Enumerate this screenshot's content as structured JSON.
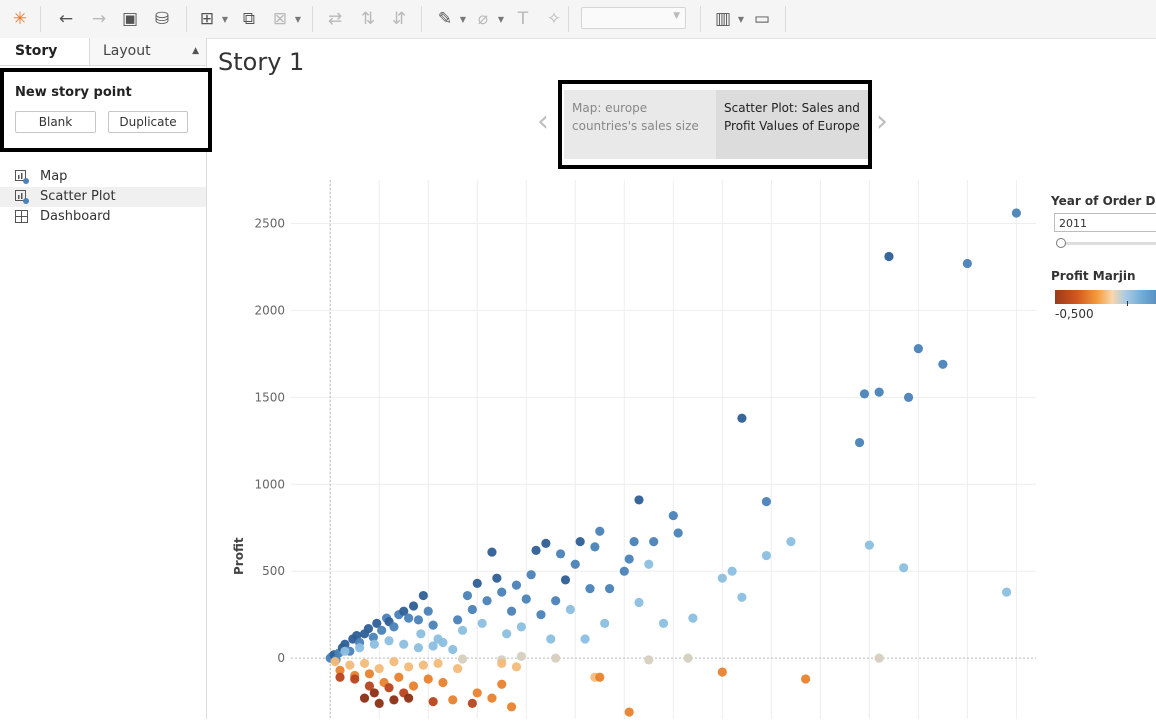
{
  "toolbar": {
    "buttons": [
      {
        "name": "tableau-logo-icon",
        "glyph": "✳",
        "x": 8
      },
      {
        "name": "undo-icon",
        "glyph": "←",
        "x": 54
      },
      {
        "name": "redo-icon",
        "glyph": "→",
        "x": 87,
        "dim": true
      },
      {
        "name": "save-icon",
        "glyph": "▣",
        "x": 118
      },
      {
        "name": "new-datasource-icon",
        "glyph": "⛁",
        "x": 150
      },
      {
        "name": "new-worksheet-icon",
        "glyph": "⊞",
        "x": 195,
        "dd": true
      },
      {
        "name": "duplicate-sheet-icon",
        "glyph": "⧉",
        "x": 237
      },
      {
        "name": "clear-sheet-icon",
        "glyph": "⊠",
        "x": 268,
        "dd": true,
        "dim": true
      },
      {
        "name": "swap-axes-icon",
        "glyph": "⇄",
        "x": 323,
        "dim": true
      },
      {
        "name": "sort-ascending-icon",
        "glyph": "⇅",
        "x": 356,
        "dim": true
      },
      {
        "name": "sort-descending-icon",
        "glyph": "⇵",
        "x": 387,
        "dim": true
      },
      {
        "name": "highlight-icon",
        "glyph": "✎",
        "x": 433,
        "dd": true
      },
      {
        "name": "group-icon",
        "glyph": "⌀",
        "x": 471,
        "dd": true,
        "dim": true
      },
      {
        "name": "show-labels-icon",
        "glyph": "T",
        "x": 511,
        "dim": true
      },
      {
        "name": "fix-axes-icon",
        "glyph": "✧",
        "x": 542,
        "dim": true
      },
      {
        "name": "show-me-icon",
        "glyph": "▥",
        "x": 711,
        "dd": true
      },
      {
        "name": "presentation-mode-icon",
        "glyph": "▭",
        "x": 750
      }
    ],
    "separators": [
      40,
      186,
      312,
      421,
      568,
      700,
      785
    ]
  },
  "left_panel": {
    "story_tab": "Story",
    "layout_tab": "Layout",
    "new_story_point_title": "New story point",
    "blank_button": "Blank",
    "duplicate_button": "Duplicate",
    "sheets": [
      {
        "label": "Map",
        "icon": "worksheet-icon",
        "selected": false
      },
      {
        "label": "Scatter Plot",
        "icon": "worksheet-icon",
        "selected": true
      },
      {
        "label": "Dashboard",
        "icon": "dashboard-icon",
        "selected": false
      }
    ]
  },
  "story": {
    "title": "Story 1",
    "prev_arrow": "‹",
    "next_arrow": "›",
    "points": [
      {
        "label": "Map: europe countries's sales size",
        "active": false
      },
      {
        "label": "Scatter Plot: Sales and Profit Values of Europe",
        "active": true
      }
    ]
  },
  "legend": {
    "year_title": "Year of Order Date",
    "year_value": "2011",
    "profit_title": "Profit Marjin",
    "profit_min": "-0,500"
  },
  "chart_data": {
    "type": "scatter",
    "xlabel": "",
    "ylabel": "Profit",
    "ylim": [
      -350,
      2750
    ],
    "xlim": [
      -800,
      14400
    ],
    "yticks": [
      2500,
      2000,
      1500,
      1000,
      500,
      0
    ],
    "grid": true,
    "legend": "right",
    "colors": {
      "dark_blue": "#2e5f96",
      "mid_blue": "#4a82b9",
      "light_blue": "#8cbfe0",
      "neutral": "#d6cdbd",
      "light_orange": "#f4bb7a",
      "orange": "#e8822d",
      "dark_orange": "#b9431d",
      "brown": "#8c2f14"
    },
    "points": [
      [
        0,
        0,
        "mid_blue"
      ],
      [
        40,
        10,
        "mid_blue"
      ],
      [
        80,
        20,
        "dark_blue"
      ],
      [
        120,
        -10,
        "mid_blue"
      ],
      [
        180,
        30,
        "mid_blue"
      ],
      [
        250,
        60,
        "dark_blue"
      ],
      [
        300,
        80,
        "dark_blue"
      ],
      [
        400,
        40,
        "mid_blue"
      ],
      [
        460,
        110,
        "dark_blue"
      ],
      [
        540,
        130,
        "dark_blue"
      ],
      [
        600,
        90,
        "mid_blue"
      ],
      [
        700,
        140,
        "dark_blue"
      ],
      [
        780,
        170,
        "dark_blue"
      ],
      [
        880,
        120,
        "mid_blue"
      ],
      [
        950,
        200,
        "dark_blue"
      ],
      [
        1050,
        160,
        "mid_blue"
      ],
      [
        1150,
        230,
        "mid_blue"
      ],
      [
        1200,
        210,
        "dark_blue"
      ],
      [
        1300,
        180,
        "mid_blue"
      ],
      [
        1400,
        250,
        "mid_blue"
      ],
      [
        1500,
        270,
        "dark_blue"
      ],
      [
        1600,
        230,
        "mid_blue"
      ],
      [
        1700,
        300,
        "dark_blue"
      ],
      [
        1800,
        220,
        "mid_blue"
      ],
      [
        1850,
        140,
        "light_blue"
      ],
      [
        1900,
        360,
        "dark_blue"
      ],
      [
        2000,
        270,
        "mid_blue"
      ],
      [
        2100,
        190,
        "mid_blue"
      ],
      [
        2200,
        110,
        "light_blue"
      ],
      [
        300,
        40,
        "light_blue"
      ],
      [
        600,
        60,
        "light_blue"
      ],
      [
        900,
        80,
        "light_blue"
      ],
      [
        1200,
        100,
        "light_blue"
      ],
      [
        1500,
        80,
        "light_blue"
      ],
      [
        1800,
        60,
        "light_blue"
      ],
      [
        2100,
        70,
        "light_blue"
      ],
      [
        2300,
        90,
        "light_blue"
      ],
      [
        2500,
        50,
        "light_blue"
      ],
      [
        2600,
        220,
        "mid_blue"
      ],
      [
        2700,
        160,
        "light_blue"
      ],
      [
        2800,
        360,
        "mid_blue"
      ],
      [
        2900,
        280,
        "mid_blue"
      ],
      [
        3000,
        430,
        "dark_blue"
      ],
      [
        3100,
        200,
        "light_blue"
      ],
      [
        3200,
        330,
        "mid_blue"
      ],
      [
        3300,
        610,
        "dark_blue"
      ],
      [
        3400,
        460,
        "dark_blue"
      ],
      [
        3500,
        380,
        "mid_blue"
      ],
      [
        3600,
        140,
        "light_blue"
      ],
      [
        3700,
        270,
        "mid_blue"
      ],
      [
        3800,
        420,
        "mid_blue"
      ],
      [
        3900,
        180,
        "light_blue"
      ],
      [
        4000,
        340,
        "mid_blue"
      ],
      [
        4100,
        480,
        "mid_blue"
      ],
      [
        4200,
        620,
        "dark_blue"
      ],
      [
        4300,
        250,
        "mid_blue"
      ],
      [
        4400,
        660,
        "dark_blue"
      ],
      [
        4500,
        110,
        "light_blue"
      ],
      [
        4600,
        330,
        "mid_blue"
      ],
      [
        4700,
        600,
        "mid_blue"
      ],
      [
        4800,
        450,
        "dark_blue"
      ],
      [
        4900,
        280,
        "light_blue"
      ],
      [
        5000,
        540,
        "mid_blue"
      ],
      [
        5100,
        670,
        "dark_blue"
      ],
      [
        5200,
        110,
        "light_blue"
      ],
      [
        5300,
        400,
        "mid_blue"
      ],
      [
        5400,
        640,
        "mid_blue"
      ],
      [
        5500,
        730,
        "mid_blue"
      ],
      [
        5600,
        200,
        "light_blue"
      ],
      [
        5700,
        400,
        "mid_blue"
      ],
      [
        6000,
        500,
        "mid_blue"
      ],
      [
        6100,
        570,
        "mid_blue"
      ],
      [
        6200,
        670,
        "mid_blue"
      ],
      [
        6300,
        320,
        "light_blue"
      ],
      [
        6300,
        910,
        "dark_blue"
      ],
      [
        6500,
        540,
        "light_blue"
      ],
      [
        6600,
        670,
        "mid_blue"
      ],
      [
        6800,
        200,
        "light_blue"
      ],
      [
        7000,
        820,
        "mid_blue"
      ],
      [
        7100,
        720,
        "mid_blue"
      ],
      [
        7400,
        230,
        "light_blue"
      ],
      [
        8000,
        460,
        "light_blue"
      ],
      [
        8200,
        500,
        "light_blue"
      ],
      [
        8400,
        350,
        "light_blue"
      ],
      [
        8400,
        1380,
        "dark_blue"
      ],
      [
        8900,
        590,
        "light_blue"
      ],
      [
        8900,
        900,
        "mid_blue"
      ],
      [
        9400,
        670,
        "light_blue"
      ],
      [
        10800,
        1240,
        "mid_blue"
      ],
      [
        10900,
        1520,
        "mid_blue"
      ],
      [
        11000,
        650,
        "light_blue"
      ],
      [
        11200,
        1530,
        "mid_blue"
      ],
      [
        11400,
        2310,
        "dark_blue"
      ],
      [
        11800,
        1500,
        "mid_blue"
      ],
      [
        12000,
        1780,
        "mid_blue"
      ],
      [
        12500,
        1690,
        "mid_blue"
      ],
      [
        13000,
        2270,
        "mid_blue"
      ],
      [
        14000,
        2560,
        "mid_blue"
      ],
      [
        11700,
        520,
        "light_blue"
      ],
      [
        13800,
        380,
        "light_blue"
      ],
      [
        7300,
        0,
        "neutral"
      ],
      [
        4600,
        0,
        "neutral"
      ],
      [
        3900,
        10,
        "neutral"
      ],
      [
        3500,
        -10,
        "neutral"
      ],
      [
        2700,
        -5,
        "neutral"
      ],
      [
        11200,
        0,
        "neutral"
      ],
      [
        6500,
        -10,
        "neutral"
      ],
      [
        100,
        -20,
        "light_orange"
      ],
      [
        400,
        -40,
        "light_orange"
      ],
      [
        700,
        -30,
        "light_orange"
      ],
      [
        1000,
        -60,
        "light_orange"
      ],
      [
        1300,
        -20,
        "light_orange"
      ],
      [
        1600,
        -50,
        "light_orange"
      ],
      [
        1900,
        -40,
        "light_orange"
      ],
      [
        2200,
        -30,
        "light_orange"
      ],
      [
        2600,
        -60,
        "light_orange"
      ],
      [
        3500,
        -30,
        "light_orange"
      ],
      [
        3800,
        -50,
        "light_orange"
      ],
      [
        5400,
        -110,
        "light_orange"
      ],
      [
        200,
        -70,
        "orange"
      ],
      [
        500,
        -100,
        "orange"
      ],
      [
        800,
        -90,
        "orange"
      ],
      [
        1100,
        -140,
        "orange"
      ],
      [
        1400,
        -110,
        "orange"
      ],
      [
        1700,
        -160,
        "orange"
      ],
      [
        2000,
        -120,
        "orange"
      ],
      [
        2300,
        -140,
        "orange"
      ],
      [
        2500,
        -240,
        "orange"
      ],
      [
        3000,
        -200,
        "orange"
      ],
      [
        3300,
        -230,
        "orange"
      ],
      [
        3500,
        -150,
        "orange"
      ],
      [
        3700,
        -280,
        "orange"
      ],
      [
        5500,
        -110,
        "orange"
      ],
      [
        6100,
        -310,
        "orange"
      ],
      [
        8000,
        -80,
        "orange"
      ],
      [
        9700,
        -120,
        "orange"
      ],
      [
        200,
        -110,
        "dark_orange"
      ],
      [
        500,
        -120,
        "dark_orange"
      ],
      [
        800,
        -160,
        "dark_orange"
      ],
      [
        1200,
        -170,
        "dark_orange"
      ],
      [
        1500,
        -200,
        "dark_orange"
      ],
      [
        2100,
        -250,
        "dark_orange"
      ],
      [
        700,
        -230,
        "brown"
      ],
      [
        900,
        -200,
        "brown"
      ],
      [
        1000,
        -260,
        "brown"
      ],
      [
        1300,
        -240,
        "brown"
      ],
      [
        1600,
        -230,
        "brown"
      ],
      [
        2900,
        -260,
        "dark_orange"
      ]
    ]
  }
}
